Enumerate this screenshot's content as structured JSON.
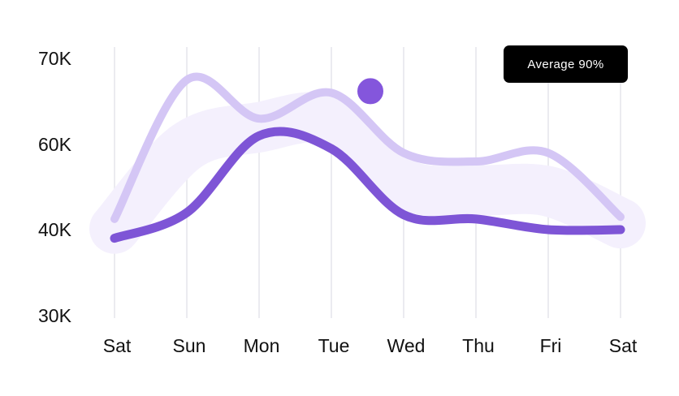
{
  "chart_data": {
    "type": "line",
    "x": [
      "Sat",
      "Sun",
      "Mon",
      "Tue",
      "Wed",
      "Thu",
      "Fri",
      "Sat"
    ],
    "y_ticks": [
      "70K",
      "60K",
      "40K",
      "30K"
    ],
    "series": [
      {
        "values": [
          42.5,
          67.5,
          63.0,
          66.0,
          58.0,
          56.0,
          58.0,
          43.0
        ],
        "color": "#d4c6f5"
      },
      {
        "values": [
          39.0,
          44.0,
          61.0,
          59.0,
          43.5,
          42.5,
          40.0,
          40.0
        ],
        "color": "#7e55d6"
      }
    ],
    "highlight": {
      "x": "Tue",
      "value": 66.0,
      "color": "#8456dc"
    },
    "band_color": "#f4f0fd",
    "annotation": "Average 90%",
    "grid": "vertical"
  }
}
